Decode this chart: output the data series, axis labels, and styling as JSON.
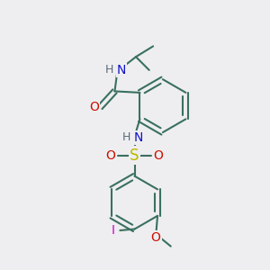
{
  "bg_color": "#eeeef0",
  "bond_color": "#3a7060",
  "bond_width": 1.5,
  "atom_colors": {
    "N": "#1010cc",
    "O": "#cc1000",
    "S": "#bbbb00",
    "I": "#cc00cc",
    "H": "#5a6a7a",
    "C": "#3a7060"
  },
  "font_size": 10,
  "figsize": [
    3.0,
    3.0
  ],
  "dpi": 100,
  "xlim": [
    0,
    10
  ],
  "ylim": [
    0,
    10
  ]
}
